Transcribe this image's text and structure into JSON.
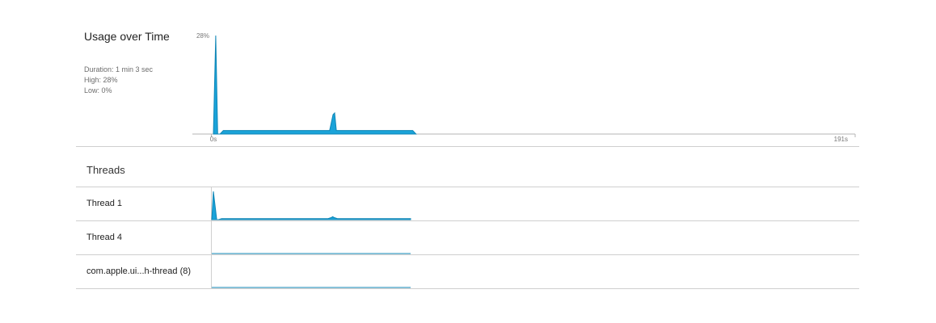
{
  "usage": {
    "title": "Usage over Time",
    "stats": {
      "duration": "Duration: 1 min 3 sec",
      "high": "High: 28%",
      "low": "Low: 0%"
    },
    "y_max_label": "28%",
    "x_start_label": "0s",
    "x_end_label": "191s"
  },
  "threads": {
    "title": "Threads",
    "rows": [
      {
        "label": "Thread 1"
      },
      {
        "label": "Thread 4"
      },
      {
        "label": "com.apple.ui...h-thread (8)"
      }
    ]
  },
  "colors": {
    "accent": "#1aa3d9",
    "accent_dark": "#0f86b6",
    "divider": "#cfcfcf",
    "axis": "#b5b5b5"
  },
  "chart_data": {
    "type": "area",
    "xlim": [
      0,
      191
    ],
    "ylim": [
      0,
      28
    ],
    "x_tick_labels": [
      "0s",
      "191s"
    ],
    "y_tick_labels": [
      "28%"
    ],
    "series": [
      {
        "x": [
          0,
          0.7,
          1.3,
          2,
          3,
          4,
          30,
          35,
          36,
          36.5,
          37,
          38,
          60,
          61
        ],
        "values": [
          0,
          28,
          0,
          0,
          1,
          1,
          1,
          1,
          5.5,
          6,
          1,
          1,
          1,
          0
        ]
      }
    ],
    "threads": [
      {
        "x": [
          0,
          0.5,
          1.5,
          2,
          3,
          4,
          30,
          35,
          36,
          36.5,
          37,
          38,
          60
        ],
        "values": [
          0,
          28,
          0,
          0,
          1,
          1,
          1,
          1,
          2,
          3,
          2,
          1,
          1
        ]
      },
      {
        "x": [
          0,
          60
        ],
        "values": [
          0,
          0
        ]
      },
      {
        "x": [
          0,
          60
        ],
        "values": [
          0,
          0
        ]
      }
    ]
  }
}
